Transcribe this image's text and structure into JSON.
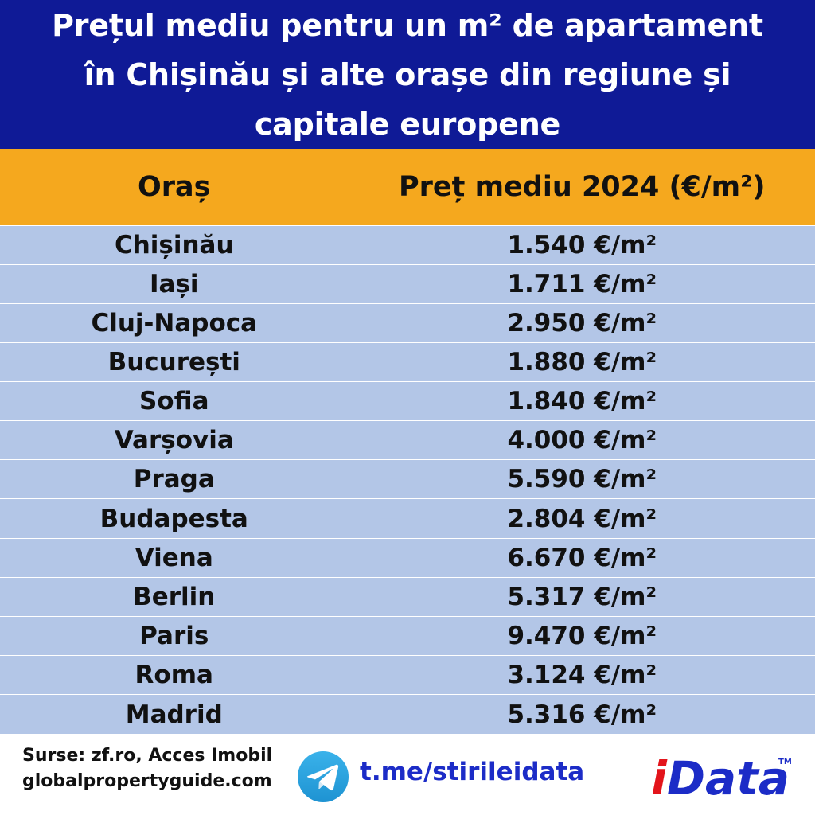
{
  "header": {
    "title_lines": [
      "Prețul mediu pentru un m² de apartament",
      "în Chișinău și alte orașe din regiune și",
      "capitale europene"
    ]
  },
  "table": {
    "columns": [
      "Oraș",
      "Preț mediu 2024 (€/m²)"
    ],
    "rows": [
      {
        "city": "Chișinău",
        "price": "1.540 €/m²"
      },
      {
        "city": "Iași",
        "price": "1.711 €/m²"
      },
      {
        "city": "Cluj-Napoca",
        "price": "2.950 €/m²"
      },
      {
        "city": "București",
        "price": "1.880 €/m²"
      },
      {
        "city": "Sofia",
        "price": "1.840 €/m²"
      },
      {
        "city": "Varșovia",
        "price": "4.000 €/m²"
      },
      {
        "city": "Praga",
        "price": "5.590 €/m²"
      },
      {
        "city": "Budapesta",
        "price": "2.804 €/m²"
      },
      {
        "city": "Viena",
        "price": "6.670 €/m²"
      },
      {
        "city": "Berlin",
        "price": "5.317 €/m²"
      },
      {
        "city": "Paris",
        "price": "9.470 €/m²"
      },
      {
        "city": "Roma",
        "price": "3.124 €/m²"
      },
      {
        "city": "Madrid",
        "price": "5.316 €/m²"
      }
    ]
  },
  "footer": {
    "sources_line1": "Surse: zf.ro, Acces Imobil",
    "sources_line2": "globalpropertyguide.com",
    "telegram_icon": "telegram-icon",
    "telegram_link": "t.me/stirileidata",
    "logo_text": "iData",
    "logo_tm": "TM"
  },
  "colors": {
    "header_bg": "#0f1a96",
    "table_head_bg": "#f5a81e",
    "table_row_bg": "#b3c6e7",
    "link": "#1c2cc7",
    "logo_i": "#e3141b",
    "logo_data": "#1c2cc7"
  }
}
